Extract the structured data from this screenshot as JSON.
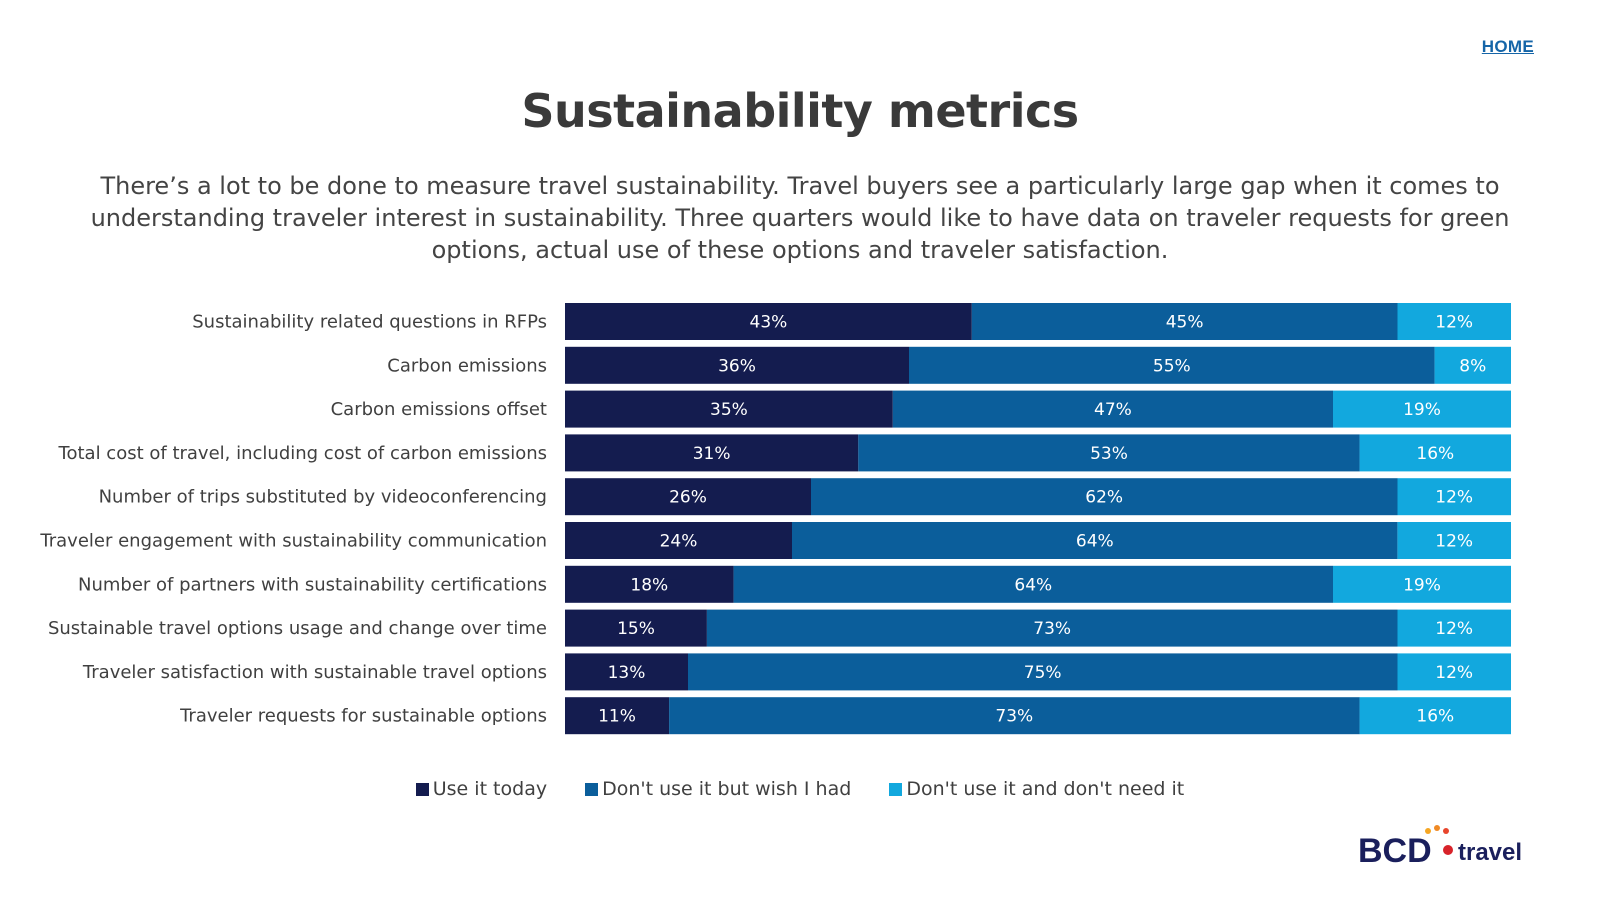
{
  "header": {
    "home_link": "HOME"
  },
  "title": "Sustainability metrics",
  "subtitle": "There’s a lot to be done to measure travel sustainability. Travel buyers see a particularly large gap when it comes to understanding traveler interest in sustainability. Three quarters would like to have data on traveler requests for green options, actual use of these options and traveler satisfaction.",
  "colors": {
    "use_today": "#141c4f",
    "wish_had": "#0b5e9b",
    "dont_need": "#12a8de"
  },
  "chart_data": {
    "type": "bar",
    "orientation": "horizontal",
    "stacked": true,
    "categories": [
      "Sustainability related questions in RFPs",
      "Carbon emissions",
      "Carbon emissions offset",
      "Total cost of travel, including cost of carbon emissions",
      "Number of trips substituted by videoconferencing",
      "Traveler engagement with sustainability communication",
      "Number of partners with sustainability certifications",
      "Sustainable travel options usage and change over time",
      "Traveler satisfaction with sustainable travel options",
      "Traveler requests for sustainable options"
    ],
    "series": [
      {
        "name": "Use it today",
        "values": [
          43,
          36,
          35,
          31,
          26,
          24,
          18,
          15,
          13,
          11
        ]
      },
      {
        "name": "Don't use it but wish I had",
        "values": [
          45,
          55,
          47,
          53,
          62,
          64,
          64,
          73,
          75,
          73
        ]
      },
      {
        "name": "Don't use it and don't need it",
        "values": [
          12,
          8,
          19,
          16,
          12,
          12,
          19,
          12,
          12,
          16
        ]
      }
    ],
    "unit": "%",
    "legend_position": "bottom"
  },
  "logo": {
    "text_left": "BCD",
    "text_right": "travel"
  }
}
